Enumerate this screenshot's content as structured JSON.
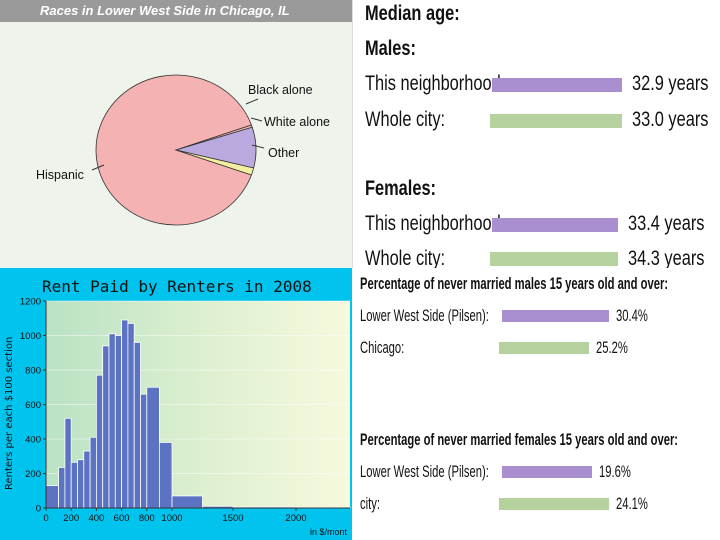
{
  "pie": {
    "title": "Races in Lower West Side in Chicago, IL",
    "labels": {
      "black": "Black alone",
      "white": "White alone",
      "other": "Other",
      "hispanic": "Hispanic"
    },
    "chart_data": {
      "type": "pie",
      "title": "Races in Lower West Side in Chicago, IL",
      "slices": [
        {
          "label": "Hispanic",
          "value": 86.5,
          "color": "#f4b2b2"
        },
        {
          "label": "Other",
          "value": 0.5,
          "color": "#f4b2b2"
        },
        {
          "label": "White alone",
          "value": 8.5,
          "color": "#b9a9df"
        },
        {
          "label": "Black alone",
          "value": 1.5,
          "color": "#f3efa0"
        }
      ]
    }
  },
  "histogram": {
    "title": "Rent Paid by Renters in 2008",
    "ylabel": "Renters per each $100 section",
    "xlabel": "in $/mont",
    "chart_data": {
      "type": "bar",
      "title": "Rent Paid by Renters in 2008",
      "ylabel": "Renters per each $100 section",
      "xlabel": "in $/mont",
      "xlim": [
        0,
        2400
      ],
      "ylim": [
        0,
        1200
      ],
      "x_ticks": [
        0,
        200,
        400,
        600,
        800,
        1000,
        1500,
        2000
      ],
      "y_ticks": [
        0,
        200,
        400,
        600,
        800,
        1000,
        1200
      ],
      "bins": [
        {
          "start": 0,
          "end": 100,
          "value": 130
        },
        {
          "start": 100,
          "end": 150,
          "value": 235
        },
        {
          "start": 150,
          "end": 200,
          "value": 520
        },
        {
          "start": 200,
          "end": 250,
          "value": 265
        },
        {
          "start": 250,
          "end": 300,
          "value": 280
        },
        {
          "start": 300,
          "end": 350,
          "value": 330
        },
        {
          "start": 350,
          "end": 400,
          "value": 410
        },
        {
          "start": 400,
          "end": 450,
          "value": 770
        },
        {
          "start": 450,
          "end": 500,
          "value": 940
        },
        {
          "start": 500,
          "end": 550,
          "value": 1010
        },
        {
          "start": 550,
          "end": 600,
          "value": 1000
        },
        {
          "start": 600,
          "end": 650,
          "value": 1090
        },
        {
          "start": 650,
          "end": 700,
          "value": 1070
        },
        {
          "start": 700,
          "end": 750,
          "value": 960
        },
        {
          "start": 750,
          "end": 800,
          "value": 660
        },
        {
          "start": 800,
          "end": 900,
          "value": 700
        },
        {
          "start": 900,
          "end": 1000,
          "value": 380
        },
        {
          "start": 1000,
          "end": 1250,
          "value": 70
        },
        {
          "start": 1250,
          "end": 1500,
          "value": 10
        },
        {
          "start": 1500,
          "end": 2000,
          "value": 6
        },
        {
          "start": 2000,
          "end": 2400,
          "value": 4
        }
      ]
    }
  },
  "stats": {
    "median_age": {
      "heading": "Median age:",
      "males_label": "Males:",
      "females_label": "Females:",
      "this_label": "This neighborhood:",
      "city_label": "Whole city:",
      "chart_data": {
        "type": "bar",
        "categories": [
          "Males",
          "Females"
        ],
        "series": [
          {
            "name": "This neighborhood",
            "values": [
              32.9,
              33.4
            ]
          },
          {
            "name": "Whole city",
            "values": [
              33.0,
              34.3
            ]
          }
        ]
      },
      "values_text": {
        "males_this": "32.9 years",
        "males_city": "33.0 years",
        "females_this": "33.4 years",
        "females_city": "34.3 years"
      }
    },
    "never_married_males": {
      "heading": "Percentage of never married males 15 years old and over:",
      "area_label": "Lower West Side (Pilsen):",
      "city_label": "Chicago:",
      "chart_data": {
        "type": "bar",
        "categories": [
          "Lower West Side (Pilsen)",
          "Chicago"
        ],
        "values": [
          30.4,
          25.2
        ]
      },
      "values_text": {
        "area": "30.4%",
        "city": "25.2%"
      }
    },
    "never_married_females": {
      "heading": "Percentage of never married females 15 years old and over:",
      "area_label": "Lower West Side (Pilsen):",
      "city_label": "city:",
      "chart_data": {
        "type": "bar",
        "categories": [
          "Lower West Side (Pilsen)",
          "city"
        ],
        "values": [
          19.6,
          24.1
        ]
      },
      "values_text": {
        "area": "19.6%",
        "city": "24.1%"
      }
    }
  }
}
